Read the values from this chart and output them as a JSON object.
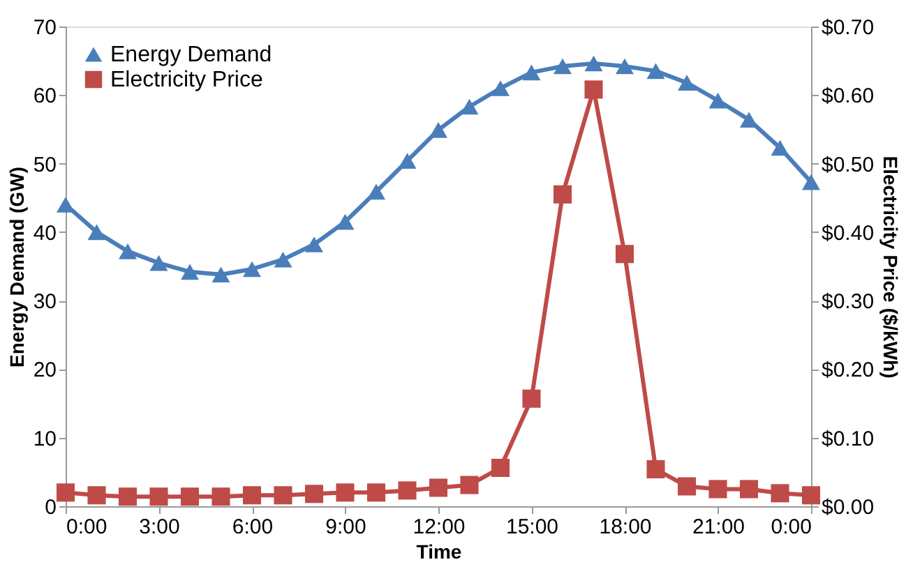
{
  "chart_data": {
    "type": "line",
    "xlabel": "Time",
    "ylabel": "Energy Demand (GW)",
    "y2label": "Electricity Price ($/kWh)",
    "x": [
      0,
      1,
      2,
      3,
      4,
      5,
      6,
      7,
      8,
      9,
      10,
      11,
      12,
      13,
      14,
      15,
      16,
      17,
      18,
      19,
      20,
      21,
      22,
      23,
      24
    ],
    "xlim": [
      0,
      24
    ],
    "xticks": [
      {
        "value": 0,
        "label": "0:00"
      },
      {
        "value": 3,
        "label": "3:00"
      },
      {
        "value": 6,
        "label": "6:00"
      },
      {
        "value": 9,
        "label": "9:00"
      },
      {
        "value": 12,
        "label": "12:00"
      },
      {
        "value": 15,
        "label": "15:00"
      },
      {
        "value": 18,
        "label": "18:00"
      },
      {
        "value": 21,
        "label": "21:00"
      },
      {
        "value": 24,
        "label": "0:00"
      }
    ],
    "ylim": [
      0,
      70
    ],
    "yticks": [
      0,
      10,
      20,
      30,
      40,
      50,
      60,
      70
    ],
    "y2lim": [
      0,
      0.7
    ],
    "y2ticks": [
      {
        "value": 0,
        "label": "$0.00"
      },
      {
        "value": 0.1,
        "label": "$0.10"
      },
      {
        "value": 0.2,
        "label": "$0.20"
      },
      {
        "value": 0.3,
        "label": "$0.30"
      },
      {
        "value": 0.4,
        "label": "$0.40"
      },
      {
        "value": 0.5,
        "label": "$0.50"
      },
      {
        "value": 0.6,
        "label": "$0.60"
      },
      {
        "value": 0.7,
        "label": "$0.70"
      }
    ],
    "grid": false,
    "legend": "top left",
    "line_style": "solid",
    "series": [
      {
        "name": "Energy Demand",
        "color": "#4a7ebb",
        "marker": "triangle",
        "values": [
          44.0,
          40.0,
          37.2,
          35.5,
          34.2,
          33.8,
          34.6,
          36.0,
          38.2,
          41.5,
          45.9,
          50.4,
          54.9,
          58.3,
          61.0,
          63.3,
          64.2,
          64.6,
          64.2,
          63.5,
          61.8,
          59.2,
          56.4,
          52.3,
          47.3
        ]
      },
      {
        "name": "Electricity Price",
        "color": "#be4b48",
        "marker": "square",
        "axis": "y2",
        "values": [
          0.02,
          0.016,
          0.014,
          0.014,
          0.014,
          0.014,
          0.016,
          0.016,
          0.018,
          0.02,
          0.02,
          0.023,
          0.027,
          0.031,
          0.056,
          0.157,
          0.455,
          0.608,
          0.368,
          0.054,
          0.029,
          0.025,
          0.025,
          0.019,
          0.016
        ]
      }
    ]
  }
}
